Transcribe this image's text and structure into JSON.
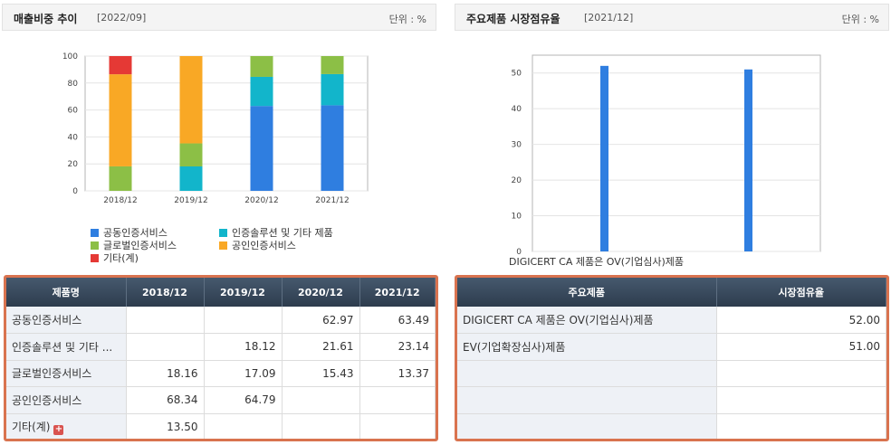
{
  "left": {
    "title": "매출비중 추이",
    "date": "[2022/09]",
    "unit": "단위 : %",
    "table_header": "제품명",
    "rows": [
      {
        "name": "공동인증서비스",
        "v": [
          "",
          "",
          "62.97",
          "63.49"
        ]
      },
      {
        "name": "인증솔루션 및 기타 ...",
        "v": [
          "",
          "18.12",
          "21.61",
          "23.14"
        ]
      },
      {
        "name": "글로벌인증서비스",
        "v": [
          "18.16",
          "17.09",
          "15.43",
          "13.37"
        ]
      },
      {
        "name": "공인인증서비스",
        "v": [
          "68.34",
          "64.79",
          "",
          ""
        ]
      },
      {
        "name": "기타(계)",
        "v": [
          "13.50",
          "",
          "",
          ""
        ]
      }
    ],
    "expand_icon": "plus-icon"
  },
  "right": {
    "title": "주요제품 시장점유율",
    "date": "[2021/12]",
    "unit": "단위 : %",
    "table_headers": [
      "주요제품",
      "시장점유율"
    ],
    "rows": [
      {
        "name": "DIGICERT CA 제품은 OV(기업심사)제품",
        "v": "52.00"
      },
      {
        "name": "EV(기업확장심사)제품",
        "v": "51.00"
      },
      {
        "name": "",
        "v": ""
      },
      {
        "name": "",
        "v": ""
      },
      {
        "name": "",
        "v": ""
      }
    ]
  },
  "chart_data": [
    {
      "type": "bar",
      "stacked": true,
      "categories": [
        "2018/12",
        "2019/12",
        "2020/12",
        "2021/12"
      ],
      "ylim": [
        0,
        100
      ],
      "yticks": [
        "0",
        "20",
        "40",
        "60",
        "80",
        "100"
      ],
      "series": [
        {
          "name": "공동인증서비스",
          "color": "#2f7ee0",
          "values": [
            0,
            0,
            62.97,
            63.49
          ]
        },
        {
          "name": "인증솔루션 및 기타 제품",
          "color": "#12b5cb",
          "values": [
            0,
            18.12,
            21.61,
            23.14
          ]
        },
        {
          "name": "글로벌인증서비스",
          "color": "#8cbf46",
          "values": [
            18.16,
            17.09,
            15.43,
            13.37
          ]
        },
        {
          "name": "공인인증서비스",
          "color": "#f9a825",
          "values": [
            68.34,
            64.79,
            0,
            0
          ]
        },
        {
          "name": "기타(계)",
          "color": "#e53935",
          "values": [
            13.5,
            0,
            0,
            0
          ]
        }
      ],
      "grid": true,
      "legend": "bottom"
    },
    {
      "type": "bar",
      "categories": [
        "DIGICERT CA 제품은 OV(기업심사)제품",
        "EV(기업확장심사)제품"
      ],
      "values": [
        52,
        51
      ],
      "color": "#2f7ee0",
      "ylim": [
        0,
        55
      ],
      "yticks": [
        "0",
        "10",
        "20",
        "30",
        "40",
        "50"
      ],
      "xtick_label": "DIGICERT CA 제품은 OV(기업심사)제품",
      "grid": true
    }
  ]
}
